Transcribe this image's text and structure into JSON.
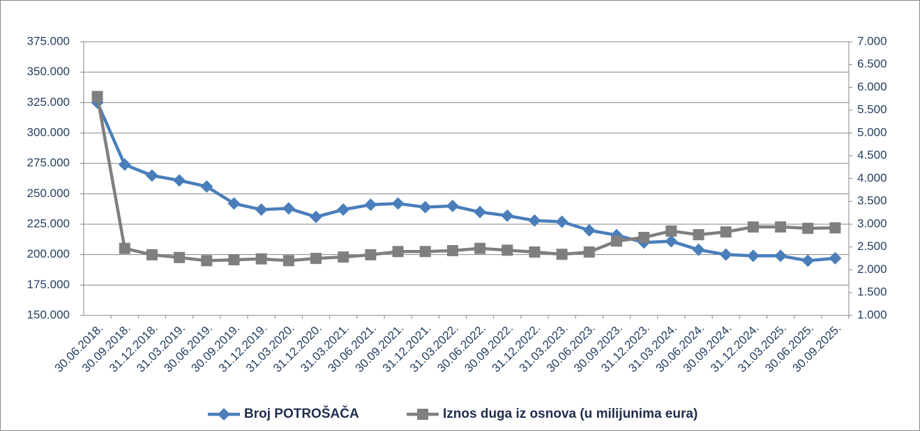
{
  "chart_data": {
    "type": "line",
    "categories": [
      "30.06.2018.",
      "30.09.2018.",
      "31.12.2018.",
      "31.03.2019.",
      "30.06.2019.",
      "30.09.2019.",
      "31.12.2019.",
      "31.03.2020.",
      "31.12.2020.",
      "31.03.2021.",
      "30.06.2021.",
      "30.09.2021.",
      "31.12.2021.",
      "31.03.2022.",
      "30.06.2022.",
      "30.09.2022.",
      "31.12.2022.",
      "31.03.2023.",
      "30.06.2023.",
      "30.09.2023.",
      "31.12.2023.",
      "31.03.2024.",
      "30.06.2024.",
      "30.09.2024.",
      "31.12.2024.",
      "31.03.2025.",
      "30.06.2025.",
      "30.09.2025."
    ],
    "series": [
      {
        "name": "Broj POTROŠAČA",
        "color": "#4a7ebb",
        "marker": "diamond",
        "axis": "y",
        "values": [
          325000,
          274000,
          265000,
          261000,
          256000,
          242000,
          237000,
          238000,
          231000,
          237000,
          241000,
          242000,
          239000,
          240000,
          235000,
          232000,
          228000,
          227000,
          220000,
          216000,
          210000,
          211000,
          204000,
          200000,
          199000,
          199000,
          195000,
          197000
        ]
      },
      {
        "name": "Iznos duga iz osnova (u milijunima eura)",
        "color": "#7f7f7f",
        "marker": "square",
        "axis": "y2",
        "values": [
          5800,
          2470,
          2330,
          2270,
          2200,
          2220,
          2240,
          2200,
          2250,
          2280,
          2330,
          2400,
          2400,
          2420,
          2470,
          2430,
          2390,
          2340,
          2390,
          2630,
          2710,
          2850,
          2770,
          2830,
          2940,
          2940,
          2910,
          2920
        ]
      }
    ],
    "ylim": [
      150000,
      375000
    ],
    "yticks": [
      {
        "value": 150000,
        "label": "150.000"
      },
      {
        "value": 175000,
        "label": "175.000"
      },
      {
        "value": 200000,
        "label": "200.000"
      },
      {
        "value": 225000,
        "label": "225.000"
      },
      {
        "value": 250000,
        "label": "250.000"
      },
      {
        "value": 275000,
        "label": "275.000"
      },
      {
        "value": 300000,
        "label": "300.000"
      },
      {
        "value": 325000,
        "label": "325.000"
      },
      {
        "value": 350000,
        "label": "350.000"
      },
      {
        "value": 375000,
        "label": "375.000"
      }
    ],
    "y2lim": [
      1000,
      7000
    ],
    "y2ticks": [
      {
        "value": 1000,
        "label": "1.000"
      },
      {
        "value": 1500,
        "label": "1.500"
      },
      {
        "value": 2000,
        "label": "2.000"
      },
      {
        "value": 2500,
        "label": "2.500"
      },
      {
        "value": 3000,
        "label": "3.000"
      },
      {
        "value": 3500,
        "label": "3.500"
      },
      {
        "value": 4000,
        "label": "4.000"
      },
      {
        "value": 4500,
        "label": "4.500"
      },
      {
        "value": 5000,
        "label": "5.000"
      },
      {
        "value": 5500,
        "label": "5.500"
      },
      {
        "value": 6000,
        "label": "6.000"
      },
      {
        "value": 6500,
        "label": "6.500"
      },
      {
        "value": 7000,
        "label": "7.000"
      }
    ],
    "grid": true,
    "legend": "bottom"
  }
}
